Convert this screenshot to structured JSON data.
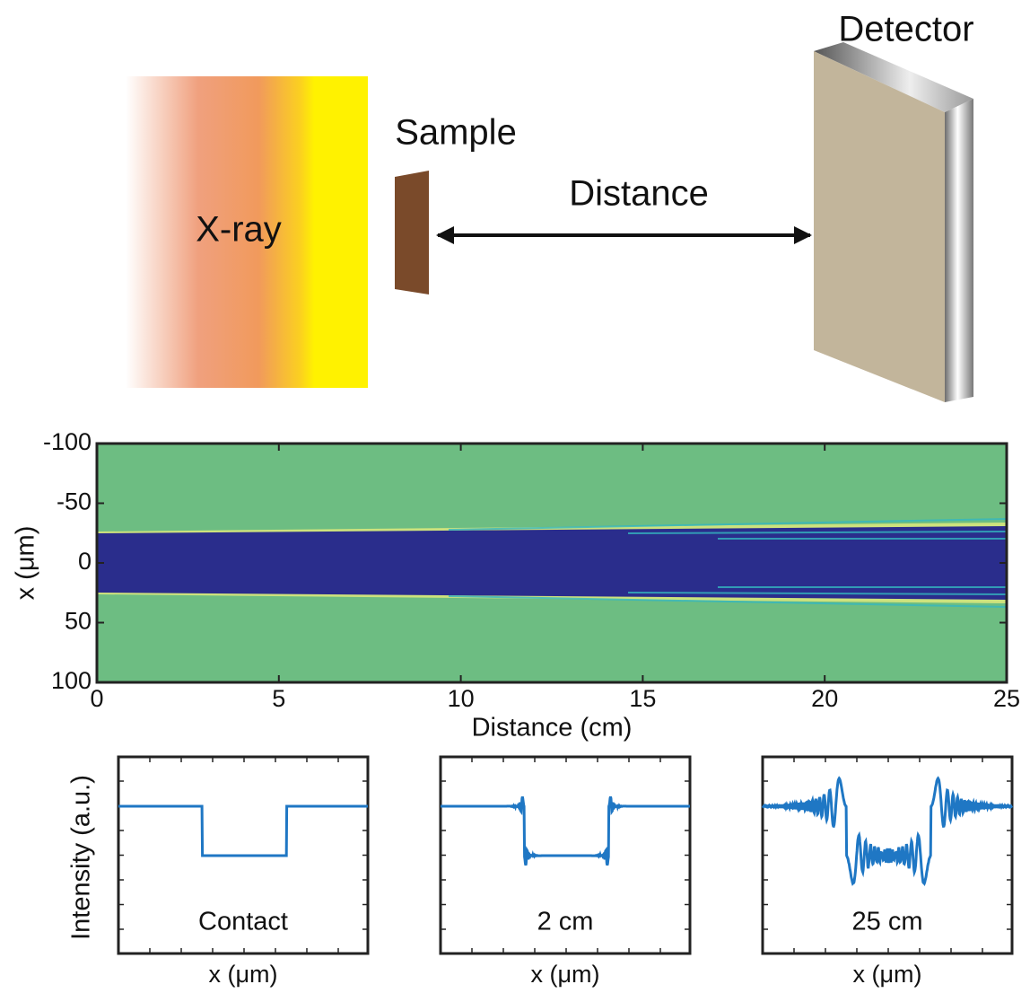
{
  "diagram": {
    "source": "X-ray",
    "sample": "Sample",
    "distance": "Distance",
    "detector": "Detector"
  },
  "chart_data": {
    "type": "heatmap",
    "xlabel": "Distance (cm)",
    "ylabel": "x (μm)",
    "xlim": [
      0,
      25
    ],
    "ylim": [
      -100,
      100
    ],
    "xticks": [
      0,
      5,
      10,
      15,
      20,
      25
    ],
    "yticks": [
      -100,
      -50,
      0,
      50,
      100
    ],
    "y_inverted": true,
    "grid": false
  },
  "profiles": {
    "ylabel": "Intensity (a.u.)",
    "color": "#1f77c4",
    "panels": [
      {
        "label": "Contact",
        "xlabel": "x (μm)"
      },
      {
        "label": "2 cm",
        "xlabel": "x (μm)"
      },
      {
        "label": "25 cm",
        "xlabel": "x (μm)"
      }
    ]
  }
}
